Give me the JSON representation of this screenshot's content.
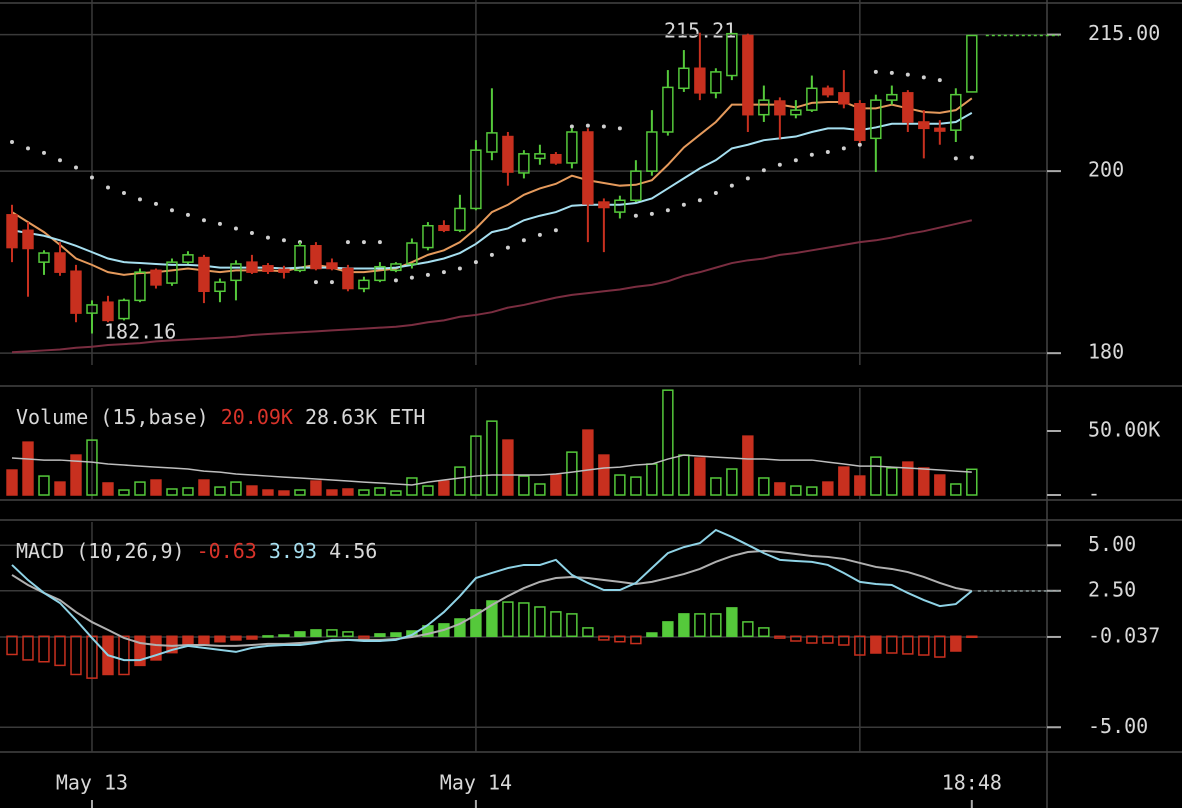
{
  "chart_data": {
    "type": "candlestick",
    "xlim": [
      -0.75,
      64.7
    ],
    "xticks": [
      {
        "value": 5,
        "label": "May 13"
      },
      {
        "value": 29,
        "label": "May 14"
      },
      {
        "value": 60,
        "label": "18:48"
      }
    ],
    "xgrid": [
      5,
      29,
      53
    ],
    "ylim": [
      178.7,
      218.8
    ],
    "yticks": [
      180,
      200,
      {
        "value": 215,
        "label": "215.00"
      }
    ],
    "up_color": "#55c93b",
    "down_color": "#c8301f",
    "open": [
      195.2,
      193.5,
      190.0,
      191.0,
      189.0,
      184.4,
      185.6,
      183.8,
      185.8,
      189.1,
      187.7,
      190.0,
      190.5,
      186.8,
      188.0,
      190.0,
      189.6,
      189.2,
      189.1,
      191.8,
      189.9,
      189.3,
      187.1,
      188.0,
      189.1,
      189.8,
      191.6,
      194.0,
      193.5,
      195.9,
      202.1,
      203.8,
      199.8,
      201.4,
      201.8,
      200.9,
      204.3,
      196.6,
      195.5,
      196.8,
      200.0,
      204.3,
      209.1,
      211.3,
      208.6,
      210.5,
      214.9,
      206.2,
      207.7,
      206.2,
      206.7,
      209.1,
      208.6,
      207.4,
      203.6,
      207.8,
      208.6,
      205.4,
      204.7,
      204.5,
      208.7
    ],
    "high": [
      196.3,
      194.4,
      191.3,
      192.2,
      189.7,
      185.8,
      186.3,
      186.0,
      189.3,
      189.3,
      190.4,
      191.2,
      190.8,
      188.2,
      190.2,
      190.8,
      189.9,
      189.6,
      192.2,
      192.2,
      190.4,
      189.7,
      188.4,
      190.0,
      190.0,
      192.6,
      194.4,
      194.6,
      197.4,
      203.4,
      209.1,
      204.3,
      202.3,
      202.9,
      202.1,
      204.7,
      204.7,
      197.0,
      197.3,
      201.2,
      206.7,
      211.1,
      213.3,
      215.21,
      211.3,
      215.2,
      215.1,
      209.4,
      208.1,
      207.8,
      210.5,
      209.4,
      211.1,
      207.8,
      208.4,
      209.4,
      208.9,
      206.7,
      205.6,
      209.1,
      214.9
    ],
    "low": [
      190.0,
      186.2,
      188.6,
      188.5,
      183.4,
      182.16,
      183.4,
      183.6,
      185.6,
      187.1,
      187.4,
      189.8,
      185.5,
      185.6,
      185.8,
      188.7,
      188.7,
      188.2,
      188.9,
      189.1,
      189.1,
      186.8,
      186.7,
      187.8,
      188.9,
      189.3,
      191.3,
      193.3,
      193.3,
      195.7,
      201.2,
      198.4,
      199.2,
      200.7,
      200.7,
      200.3,
      192.2,
      191.1,
      194.8,
      196.6,
      199.5,
      203.9,
      208.7,
      207.8,
      208.0,
      210.0,
      204.3,
      205.4,
      203.5,
      205.8,
      206.5,
      208.1,
      206.9,
      203.1,
      199.9,
      207.3,
      204.3,
      201.4,
      202.9,
      203.2,
      208.7
    ],
    "close": [
      191.6,
      191.5,
      191.0,
      188.9,
      184.4,
      185.3,
      183.6,
      185.8,
      188.9,
      187.5,
      190.0,
      190.8,
      186.8,
      187.8,
      189.8,
      188.9,
      189.0,
      188.9,
      191.8,
      189.3,
      189.3,
      187.1,
      188.0,
      189.5,
      189.8,
      192.1,
      194.0,
      193.5,
      195.9,
      202.3,
      204.2,
      199.9,
      201.9,
      201.9,
      200.9,
      204.3,
      196.4,
      196.0,
      196.8,
      200.0,
      204.3,
      209.2,
      211.3,
      208.6,
      210.9,
      215.1,
      206.2,
      207.8,
      206.2,
      206.7,
      209.1,
      208.4,
      207.4,
      203.4,
      207.8,
      208.4,
      205.4,
      204.7,
      204.4,
      208.4,
      214.9
    ],
    "annotations": [
      "215.21",
      "182.16"
    ],
    "overlays": [
      {
        "color": "#e59a5c",
        "values": [
          195.5,
          194.4,
          193.3,
          191.9,
          190.4,
          189.7,
          188.9,
          188.6,
          188.8,
          188.9,
          189.1,
          189.3,
          189.1,
          188.9,
          189.1,
          189.1,
          189.1,
          189.0,
          189.4,
          189.7,
          189.4,
          188.9,
          188.9,
          189.1,
          189.3,
          190.0,
          190.8,
          191.3,
          192.2,
          193.7,
          195.5,
          196.3,
          197.4,
          198.1,
          198.6,
          199.5,
          199.0,
          198.7,
          198.4,
          198.5,
          199.0,
          200.7,
          202.6,
          204.0,
          205.4,
          207.3,
          207.3,
          207.3,
          207.3,
          207.0,
          207.5,
          207.6,
          207.6,
          206.9,
          206.9,
          207.3,
          206.9,
          206.5,
          206.4,
          206.7,
          208.0
        ]
      },
      {
        "color": "#a6dff0",
        "values": [
          193.5,
          193.2,
          192.9,
          192.4,
          191.8,
          191.1,
          190.4,
          190.0,
          189.9,
          189.8,
          189.7,
          189.7,
          189.6,
          189.4,
          189.4,
          189.4,
          189.4,
          189.3,
          189.4,
          189.4,
          189.4,
          189.3,
          189.3,
          189.3,
          189.4,
          189.7,
          190.0,
          190.4,
          191.0,
          192.0,
          193.3,
          193.7,
          194.6,
          195.1,
          195.5,
          196.2,
          196.3,
          196.3,
          196.3,
          196.5,
          197.0,
          198.1,
          199.2,
          200.3,
          201.2,
          202.5,
          202.9,
          203.4,
          203.6,
          203.8,
          204.3,
          204.7,
          204.7,
          204.5,
          204.8,
          205.2,
          205.2,
          205.2,
          205.2,
          205.4,
          206.4
        ]
      },
      {
        "color": "#7a2d40",
        "values": [
          180.1,
          180.2,
          180.3,
          180.4,
          180.6,
          180.7,
          180.9,
          181.0,
          181.1,
          181.3,
          181.4,
          181.5,
          181.6,
          181.7,
          181.8,
          182.0,
          182.1,
          182.2,
          182.3,
          182.4,
          182.5,
          182.6,
          182.7,
          182.8,
          182.9,
          183.1,
          183.4,
          183.6,
          184.0,
          184.2,
          184.5,
          185.0,
          185.3,
          185.7,
          186.1,
          186.4,
          186.6,
          186.8,
          187.0,
          187.3,
          187.5,
          187.9,
          188.5,
          188.9,
          189.4,
          189.9,
          190.2,
          190.4,
          190.8,
          191.0,
          191.3,
          191.6,
          191.9,
          192.2,
          192.4,
          192.7,
          193.1,
          193.4,
          193.8,
          194.2,
          194.6
        ]
      }
    ],
    "sar": {
      "color": "#cfcfcf",
      "values": [
        203.2,
        202.5,
        202.0,
        201.2,
        200.4,
        199.3,
        198.2,
        197.6,
        196.9,
        196.4,
        195.7,
        195.2,
        194.6,
        194.2,
        193.7,
        193.2,
        192.7,
        192.4,
        192.2,
        187.8,
        187.8,
        192.2,
        192.2,
        192.2,
        188.0,
        188.3,
        188.6,
        188.9,
        189.3,
        190.0,
        190.8,
        191.6,
        192.4,
        193.0,
        193.5,
        204.9,
        205.0,
        204.9,
        204.7,
        195.1,
        195.3,
        195.7,
        196.3,
        196.8,
        197.6,
        198.4,
        199.2,
        200.1,
        200.7,
        201.2,
        201.8,
        202.1,
        202.5,
        202.9,
        210.9,
        210.8,
        210.6,
        210.3,
        210.0,
        201.4,
        201.5
      ]
    },
    "volume": {
      "type": "bar",
      "title": "Volume (15,base)",
      "readouts": [
        "20.09K",
        "28.63K ETH"
      ],
      "readout_colors": [
        "#d8332a",
        "#d8d8d8"
      ],
      "ylim": [
        -3.9,
        83.6
      ],
      "yticks": [
        {
          "value": 0,
          "label": "-"
        },
        {
          "value": 50,
          "label": "50.00K"
        }
      ],
      "values": [
        19.5,
        41.3,
        14.8,
        10.1,
        31.2,
        42.9,
        9.4,
        3.9,
        10.1,
        11.7,
        4.7,
        5.5,
        11.7,
        6.2,
        10.1,
        7.0,
        3.9,
        3.1,
        3.9,
        10.9,
        3.9,
        4.7,
        3.9,
        5.5,
        3.1,
        13.3,
        7.0,
        10.9,
        21.8,
        46.0,
        57.7,
        42.9,
        14.8,
        8.6,
        15.6,
        33.5,
        50.7,
        31.2,
        15.6,
        14.0,
        24.2,
        81.9,
        31.2,
        28.9,
        13.3,
        20.3,
        46.0,
        13.3,
        9.4,
        7.0,
        6.2,
        10.1,
        21.8,
        14.8,
        29.6,
        21.1,
        25.7,
        21.1,
        15.6,
        8.6,
        20.1
      ],
      "ma": {
        "color": "#bdbdbd",
        "values": [
          28.9,
          28.1,
          27.3,
          27.3,
          26.5,
          25.7,
          24.2,
          23.4,
          22.6,
          21.8,
          21.1,
          20.3,
          18.7,
          17.9,
          16.4,
          15.6,
          14.8,
          14.0,
          13.3,
          12.5,
          11.7,
          10.9,
          10.1,
          9.4,
          8.6,
          7.8,
          10.1,
          11.7,
          13.3,
          14.8,
          15.6,
          15.6,
          15.6,
          15.6,
          16.4,
          17.9,
          19.5,
          21.1,
          21.8,
          23.4,
          24.2,
          28.1,
          31.2,
          30.4,
          29.6,
          28.9,
          28.1,
          28.1,
          27.3,
          27.3,
          27.3,
          25.7,
          24.2,
          22.6,
          22.6,
          21.8,
          21.1,
          20.3,
          19.5,
          18.7,
          17.9
        ]
      }
    },
    "macd": {
      "type": "macd",
      "title": "MACD (10,26,9)",
      "readouts": [
        "-0.63",
        "3.93",
        "4.56"
      ],
      "readout_colors": [
        "#d8332a",
        "#a6dff0",
        "#d8d8d8"
      ],
      "ylim": [
        -6.36,
        6.28
      ],
      "yticks": [
        {
          "value": 5,
          "label": "5.00"
        },
        {
          "value": 2.5,
          "label": "2.50"
        },
        -0.037,
        {
          "value": -5,
          "label": "-5.00"
        }
      ],
      "histogram": [
        -1.0,
        -1.3,
        -1.4,
        -1.6,
        -2.1,
        -2.3,
        -2.1,
        -2.1,
        -1.6,
        -1.3,
        -0.9,
        -0.5,
        -0.4,
        -0.3,
        -0.2,
        -0.15,
        0.02,
        0.07,
        0.24,
        0.35,
        0.35,
        0.24,
        -0.1,
        0.13,
        0.18,
        0.29,
        0.57,
        0.68,
        0.95,
        1.45,
        1.94,
        1.88,
        1.83,
        1.61,
        1.34,
        1.23,
        0.46,
        -0.2,
        -0.3,
        -0.4,
        0.18,
        0.79,
        1.23,
        1.23,
        1.23,
        1.56,
        0.79,
        0.46,
        -0.1,
        -0.26,
        -0.37,
        -0.37,
        -0.48,
        -1.03,
        -0.92,
        -0.92,
        -0.97,
        -1.03,
        -1.14,
        -0.81,
        -0.04
      ],
      "macd_line": {
        "color": "#8fd3e6",
        "values": [
          3.92,
          3.09,
          2.38,
          1.83,
          0.9,
          -0.09,
          -1.04,
          -1.31,
          -1.31,
          -1.04,
          -0.75,
          -0.53,
          -0.64,
          -0.75,
          -0.86,
          -0.64,
          -0.53,
          -0.48,
          -0.48,
          -0.37,
          -0.2,
          -0.2,
          -0.26,
          -0.26,
          -0.2,
          0.07,
          0.62,
          1.33,
          2.21,
          3.2,
          3.48,
          3.75,
          3.92,
          3.92,
          4.2,
          3.37,
          2.93,
          2.54,
          2.54,
          2.93,
          3.75,
          4.57,
          4.9,
          5.12,
          5.84,
          5.46,
          5.02,
          4.57,
          4.2,
          4.14,
          4.09,
          3.92,
          3.48,
          2.99,
          2.87,
          2.82,
          2.38,
          1.99,
          1.66,
          1.77,
          2.49
        ]
      },
      "signal_line": {
        "color": "#b0b0b0",
        "values": [
          3.37,
          2.82,
          2.38,
          1.99,
          1.33,
          0.78,
          0.35,
          -0.09,
          -0.37,
          -0.48,
          -0.53,
          -0.48,
          -0.48,
          -0.53,
          -0.53,
          -0.48,
          -0.42,
          -0.42,
          -0.37,
          -0.31,
          -0.26,
          -0.2,
          -0.2,
          -0.2,
          -0.15,
          -0.04,
          0.13,
          0.35,
          0.68,
          1.17,
          1.72,
          2.21,
          2.65,
          2.99,
          3.2,
          3.26,
          3.2,
          3.09,
          2.99,
          2.87,
          2.99,
          3.2,
          3.42,
          3.7,
          4.09,
          4.41,
          4.63,
          4.69,
          4.63,
          4.52,
          4.41,
          4.36,
          4.25,
          4.03,
          3.81,
          3.7,
          3.53,
          3.26,
          2.93,
          2.65,
          2.49
        ]
      }
    }
  }
}
